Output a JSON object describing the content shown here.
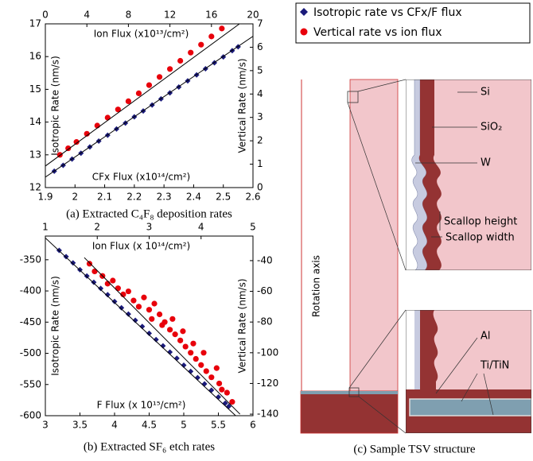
{
  "chart_data": [
    {
      "type": "scatter",
      "caption": "(a) Extracted C₄F₈ deposition rates",
      "xlabel": "CFx Flux (x10¹⁴/cm²)",
      "x2label": "Ion Flux (x10¹³/cm²)",
      "ylabel": "Isotropic Rate (nm/s)",
      "y2label": "Vertical Rate (nm/s)",
      "xlim": [
        1.9,
        2.6
      ],
      "xticks": [
        1.9,
        2,
        2.1,
        2.2,
        2.3,
        2.4,
        2.5,
        2.6
      ],
      "x2lim": [
        0,
        20
      ],
      "x2ticks": [
        0,
        4,
        8,
        12,
        16,
        20
      ],
      "ylim": [
        12,
        17
      ],
      "yticks": [
        12,
        13,
        14,
        15,
        16,
        17
      ],
      "y2lim": [
        0,
        7
      ],
      "y2ticks": [
        0,
        1,
        2,
        3,
        4,
        5,
        6,
        7
      ],
      "series": [
        {
          "name": "Isotropic rate vs CFx/F flux",
          "color": "#1a1a7a",
          "marker": "diamond",
          "x": [
            1.93,
            1.96,
            1.99,
            2.02,
            2.05,
            2.08,
            2.11,
            2.14,
            2.17,
            2.2,
            2.23,
            2.26,
            2.29,
            2.32,
            2.35,
            2.38,
            2.41,
            2.44,
            2.47,
            2.5,
            2.53,
            2.55
          ],
          "values": [
            12.5,
            12.68,
            12.87,
            13.05,
            13.24,
            13.42,
            13.6,
            13.79,
            13.97,
            14.16,
            14.34,
            14.52,
            14.71,
            14.89,
            15.07,
            15.26,
            15.44,
            15.63,
            15.81,
            15.99,
            16.18,
            16.3
          ]
        },
        {
          "name": "Vertical rate vs ion flux",
          "color": "#e8000b",
          "marker": "circle",
          "axis": "y2",
          "x": [
            1.4,
            2.2,
            3,
            4,
            5,
            6,
            7,
            8,
            9,
            10,
            11,
            12,
            13,
            14,
            15,
            16,
            17
          ],
          "values": [
            1.4,
            1.68,
            1.95,
            2.3,
            2.65,
            2.99,
            3.34,
            3.69,
            4.03,
            4.38,
            4.73,
            5.07,
            5.42,
            5.77,
            6.11,
            6.46,
            6.8
          ]
        }
      ],
      "fit_lines": [
        {
          "x": [
            1.9,
            2.6
          ],
          "y": [
            12.32,
            16.62
          ]
        },
        {
          "axis": "y2",
          "x": [
            0,
            18.7
          ],
          "y": [
            0.92,
            7
          ]
        }
      ]
    },
    {
      "type": "scatter",
      "caption": "(b) Extracted SF₆ etch rates",
      "xlabel": "F Flux (x 10¹⁵/cm²)",
      "x2label": "Ion Flux (x 10¹⁴/cm²)",
      "ylabel": "Isotropic Rate (nm/s)",
      "y2label": "Vertical Rate (nm/s)",
      "xlim": [
        3,
        6
      ],
      "xticks": [
        3,
        3.5,
        4,
        4.5,
        5,
        5.5,
        6
      ],
      "x2lim": [
        1,
        5
      ],
      "x2ticks": [
        1,
        2,
        3,
        4,
        5
      ],
      "ylim": [
        -600,
        -312
      ],
      "yticks": [
        -600,
        -550,
        -500,
        -450,
        -400,
        -350
      ],
      "y2lim": [
        -141,
        -24
      ],
      "y2ticks": [
        -140,
        -120,
        -100,
        -80,
        -60,
        -40
      ],
      "series": [
        {
          "color": "#1a1a7a",
          "marker": "diamond",
          "x": [
            3.2,
            3.3,
            3.4,
            3.5,
            3.6,
            3.7,
            3.8,
            3.9,
            4.0,
            4.1,
            4.2,
            4.3,
            4.4,
            4.5,
            4.6,
            4.7,
            4.8,
            4.9,
            5.0,
            5.1,
            5.2,
            5.3,
            5.4,
            5.5,
            5.6,
            5.65
          ],
          "values": [
            -335,
            -345,
            -355,
            -366,
            -376,
            -386,
            -396,
            -406,
            -417,
            -427,
            -437,
            -447,
            -457,
            -468,
            -478,
            -488,
            -498,
            -508,
            -519,
            -529,
            -539,
            -549,
            -559,
            -570,
            -580,
            -585
          ]
        },
        {
          "color": "#e8000b",
          "marker": "circle",
          "axis": "y2",
          "x": [
            1.85,
            1.95,
            2.1,
            2.2,
            2.3,
            2.4,
            2.5,
            2.6,
            2.7,
            2.8,
            2.9,
            3.0,
            3.05,
            3.1,
            3.2,
            3.25,
            3.3,
            3.4,
            3.45,
            3.5,
            3.6,
            3.65,
            3.7,
            3.8,
            3.85,
            3.9,
            4.0,
            4.05,
            4.1,
            4.2,
            4.3,
            4.35,
            4.4,
            4.5,
            4.6
          ],
          "values": [
            -42,
            -47,
            -50,
            -55,
            -53,
            -58,
            -62,
            -60,
            -66,
            -70,
            -64,
            -72,
            -78,
            -68,
            -75,
            -82,
            -80,
            -85,
            -78,
            -88,
            -92,
            -86,
            -96,
            -100,
            -94,
            -104,
            -108,
            -100,
            -112,
            -116,
            -110,
            -120,
            -124,
            -126,
            -132
          ]
        }
      ],
      "fit_lines": [
        {
          "x": [
            3.0,
            5.75
          ],
          "y": [
            -315,
            -600
          ]
        },
        {
          "axis": "y2",
          "x": [
            1.75,
            4.75
          ],
          "y": [
            -38,
            -140
          ]
        }
      ]
    }
  ],
  "diagram": {
    "caption": "(c) Sample TSV structure",
    "labels": {
      "si": "Si",
      "sio2": "SiO₂",
      "w": "W",
      "scallop_height": "Scallop height",
      "scallop_width": "Scallop width",
      "al": "Al",
      "titin": "Ti/TiN",
      "rotation_axis": "Rotation axis"
    }
  }
}
